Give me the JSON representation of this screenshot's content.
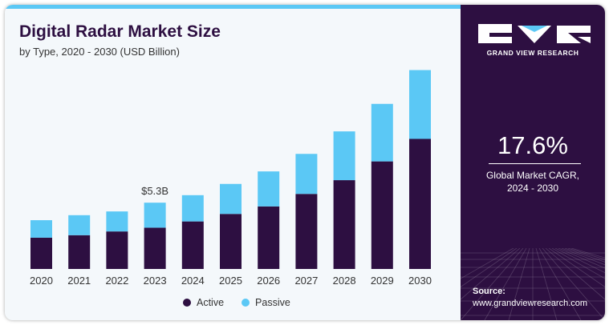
{
  "title": "Digital Radar Market Size",
  "subtitle": "by Type, 2020 - 2030 (USD Billion)",
  "colors": {
    "active": "#2d0f41",
    "passive": "#5bc8f5",
    "panel": "#2d0f41"
  },
  "brand": "GRAND VIEW RESEARCH",
  "cagr": {
    "value": "17.6%",
    "label_line1": "Global Market CAGR,",
    "label_line2": "2024 - 2030"
  },
  "source": {
    "label": "Source:",
    "url": "www.grandviewresearch.com"
  },
  "chart_data": {
    "type": "bar",
    "stacked": true,
    "categories": [
      "2020",
      "2021",
      "2022",
      "2023",
      "2024",
      "2025",
      "2026",
      "2027",
      "2028",
      "2029",
      "2030"
    ],
    "series": [
      {
        "name": "Active",
        "values": [
          2.5,
          2.7,
          3.0,
          3.3,
          3.8,
          4.4,
          5.0,
          6.0,
          7.1,
          8.6,
          10.4
        ]
      },
      {
        "name": "Passive",
        "values": [
          1.4,
          1.6,
          1.6,
          2.0,
          2.1,
          2.4,
          2.8,
          3.2,
          3.9,
          4.6,
          5.5
        ]
      }
    ],
    "annotations": [
      {
        "category": "2023",
        "text": "$5.3B"
      }
    ],
    "ylim": [
      0,
      16
    ],
    "legend_position": "bottom",
    "grid": false
  }
}
